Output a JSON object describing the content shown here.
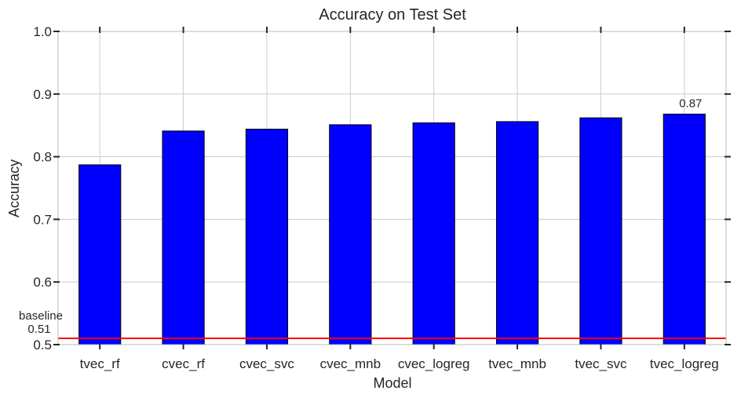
{
  "chart_data": {
    "type": "bar",
    "title": "Accuracy on Test Set",
    "xlabel": "Model",
    "ylabel": "Accuracy",
    "categories": [
      "tvec_rf",
      "cvec_rf",
      "cvec_svc",
      "cvec_mnb",
      "cvec_logreg",
      "tvec_mnb",
      "tvec_svc",
      "tvec_logreg"
    ],
    "values": [
      0.787,
      0.841,
      0.844,
      0.851,
      0.854,
      0.856,
      0.862,
      0.868
    ],
    "ylim": [
      0.5,
      1.0
    ],
    "yticks": [
      0.5,
      0.6,
      0.7,
      0.8,
      0.9,
      1.0
    ],
    "ytick_labels": [
      "0.5",
      "0.6",
      "0.7",
      "0.8",
      "0.9",
      "1.0"
    ],
    "annotations": [
      {
        "category": "tvec_logreg",
        "text": "0.87"
      }
    ],
    "baseline": {
      "value": 0.51,
      "label": "baseline",
      "value_label": "0.51",
      "color": "#ff0000"
    },
    "bar_color": "#0000ff",
    "grid": true
  }
}
